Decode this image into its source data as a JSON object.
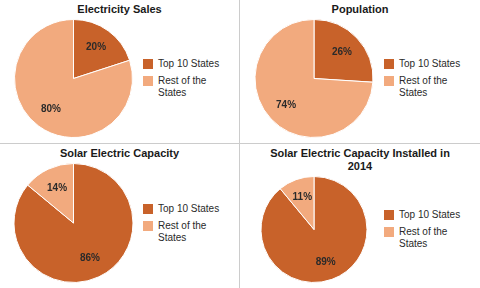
{
  "chart_data": [
    {
      "type": "pie",
      "title": "Electricity Sales",
      "categories": [
        "Top 10 States",
        "Rest of the\nStates"
      ],
      "values": [
        20,
        80
      ],
      "value_labels": [
        "20%",
        "80%"
      ],
      "colors": [
        "#C8622A",
        "#F2AA7E"
      ],
      "data_labels": true,
      "legend": "right"
    },
    {
      "type": "pie",
      "title": "Population",
      "categories": [
        "Top 10 States",
        "Rest of the\nStates"
      ],
      "values": [
        26,
        74
      ],
      "value_labels": [
        "26%",
        "74%"
      ],
      "colors": [
        "#C8622A",
        "#F2AA7E"
      ],
      "data_labels": true,
      "legend": "right"
    },
    {
      "type": "pie",
      "title": "Solar Electric Capacity",
      "categories": [
        "Top 10 States",
        "Rest of the\nStates"
      ],
      "values": [
        86,
        14
      ],
      "value_labels": [
        "86%",
        "14%"
      ],
      "colors": [
        "#C8622A",
        "#F2AA7E"
      ],
      "data_labels": true,
      "legend": "right"
    },
    {
      "type": "pie",
      "title": "Solar Electric Capacity Installed in\n2014",
      "categories": [
        "Top 10 States",
        "Rest of the\nStates"
      ],
      "values": [
        89,
        11
      ],
      "value_labels": [
        "89%",
        "11%"
      ],
      "colors": [
        "#C8622A",
        "#F2AA7E"
      ],
      "data_labels": true,
      "legend": "right"
    }
  ]
}
